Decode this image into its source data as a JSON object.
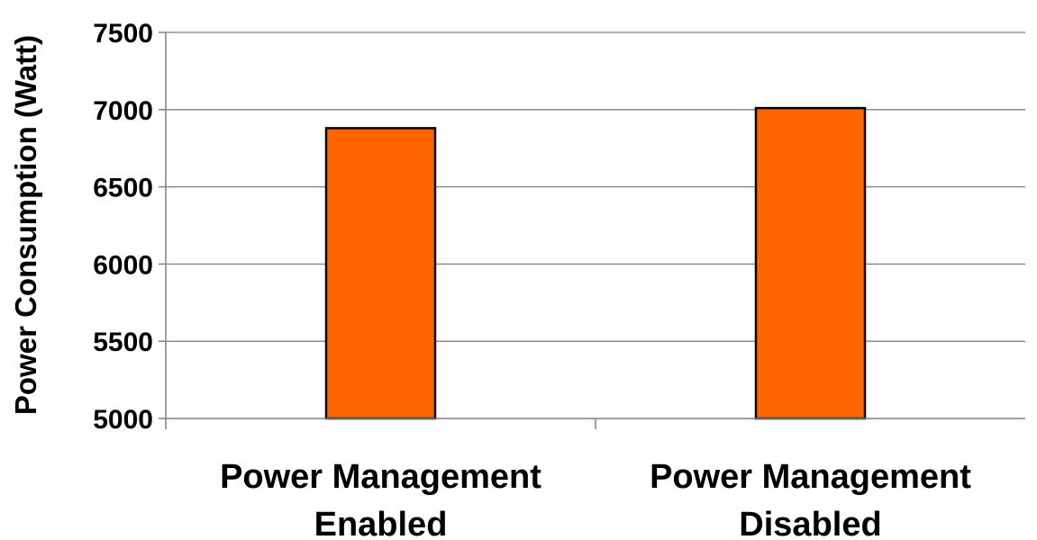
{
  "chart_data": {
    "type": "bar",
    "categories": [
      [
        "Power Management",
        "Enabled"
      ],
      [
        "Power Management",
        "Disabled"
      ]
    ],
    "values": [
      6880,
      7010
    ],
    "title": "",
    "xlabel": "",
    "ylabel": "Power Consumption (Watt)",
    "ylim": [
      5000,
      7500
    ],
    "yticks": [
      5000,
      5500,
      6000,
      6500,
      7000,
      7500
    ],
    "grid": "horizontal",
    "legend": "none",
    "colors": {
      "bar_fill": "#ff6600",
      "bar_stroke": "#000000",
      "grid": "#808080",
      "axis": "#808080",
      "text": "#000000"
    }
  }
}
